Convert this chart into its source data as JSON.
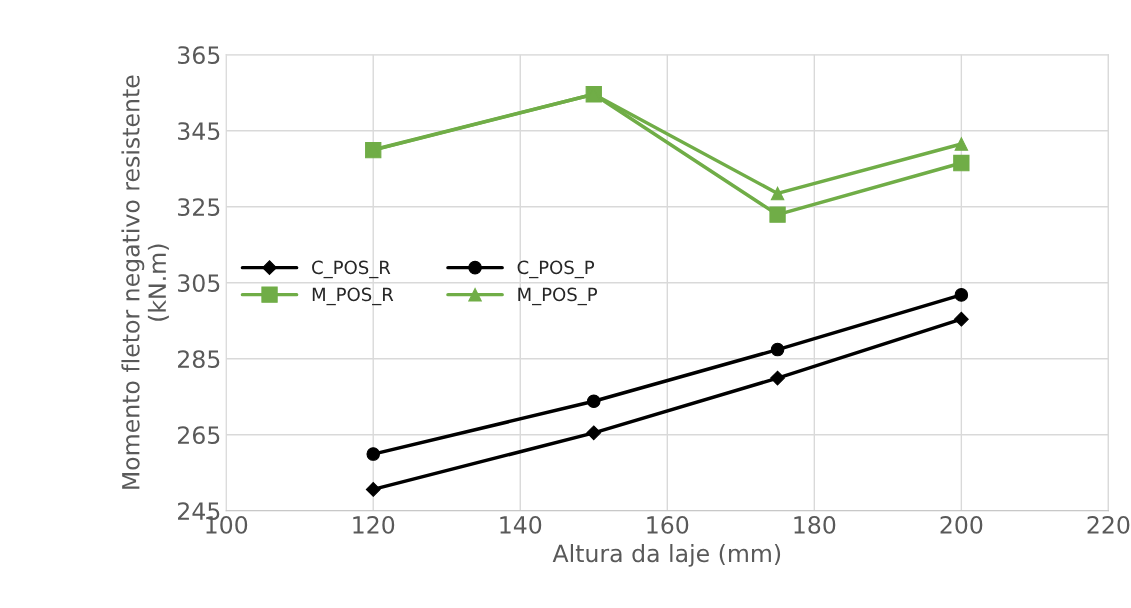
{
  "chart_data": {
    "type": "line",
    "xlabel": "Altura da laje (mm)",
    "ylabel": "Momento fletor negativo resistente\n(kN.m)",
    "x": [
      120,
      150,
      175,
      200
    ],
    "series": [
      {
        "name": "C_POS_R",
        "color": "#000000",
        "marker": "diamond",
        "values": [
          250.6,
          265.5,
          279.9,
          295.4
        ]
      },
      {
        "name": "C_POS_P",
        "color": "#000000",
        "marker": "circle",
        "values": [
          259.9,
          273.8,
          287.4,
          301.8
        ]
      },
      {
        "name": "M_POS_R",
        "color": "#70ad47",
        "marker": "square",
        "values": [
          339.9,
          354.6,
          322.9,
          336.5
        ]
      },
      {
        "name": "M_POS_P",
        "color": "#70ad47",
        "marker": "triangle",
        "values": [
          340.0,
          354.6,
          328.5,
          341.5
        ]
      }
    ],
    "xlim": [
      100,
      220
    ],
    "xticks": [
      100,
      120,
      140,
      160,
      180,
      200,
      220
    ],
    "ylim": [
      245,
      365
    ],
    "yticks": [
      245,
      265,
      285,
      305,
      325,
      345,
      365
    ],
    "grid": true,
    "legend": "center left"
  }
}
